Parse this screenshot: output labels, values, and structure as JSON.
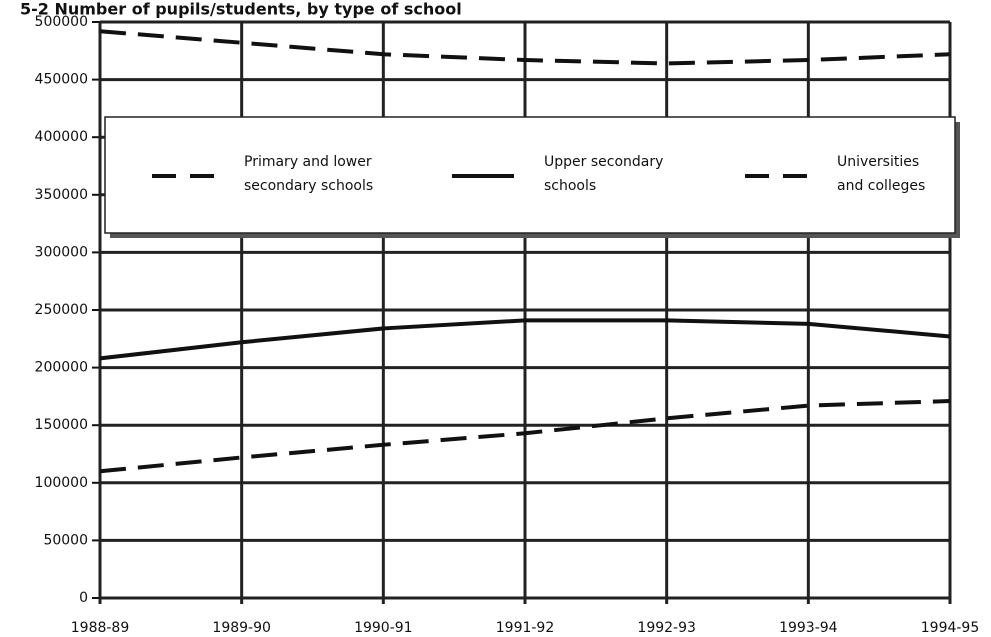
{
  "chart_data": {
    "type": "line",
    "title": "5-2  Number of pupils/students, by type of school",
    "categories": [
      "1988-89",
      "1989-90",
      "1990-91",
      "1991-92",
      "1992-93",
      "1993-94",
      "1994-95"
    ],
    "series": [
      {
        "name": "Primary and lower secondary schools",
        "color": "#111111",
        "dash": "dashed",
        "values": [
          492000,
          482000,
          472000,
          467000,
          464000,
          467000,
          472000
        ]
      },
      {
        "name": "Upper secondary schools",
        "color": "#111111",
        "dash": "solid",
        "values": [
          208000,
          222000,
          234000,
          241000,
          241000,
          238000,
          227000
        ]
      },
      {
        "name": "Universities and colleges",
        "color": "#111111",
        "dash": "dashed",
        "values": [
          110000,
          122000,
          133000,
          143000,
          156000,
          167000,
          171000
        ]
      }
    ],
    "ylim": [
      0,
      500000
    ],
    "yticks": [
      0,
      50000,
      100000,
      150000,
      200000,
      250000,
      300000,
      350000,
      400000,
      450000,
      500000
    ],
    "grid": true
  }
}
